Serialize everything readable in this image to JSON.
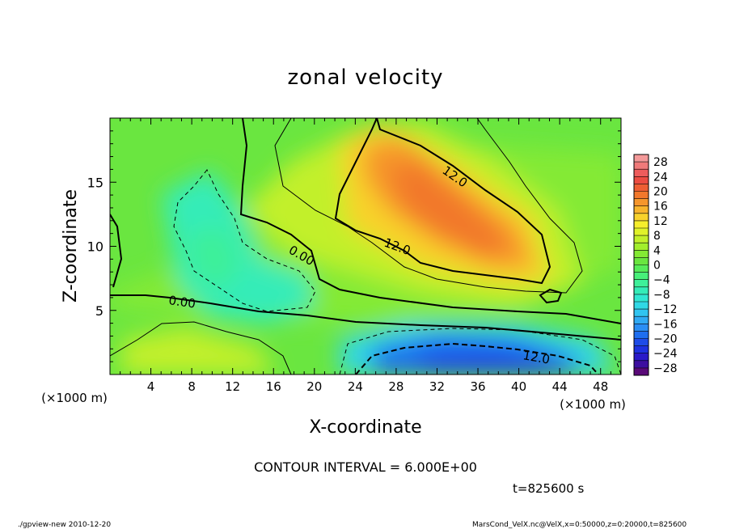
{
  "chart_data": {
    "type": "heatmap",
    "title": "zonal velocity",
    "xlabel": "X-coordinate",
    "ylabel": "Z-coordinate",
    "x_unit": "(×1000 m)",
    "y_unit": "(×1000 m)",
    "xlim": [
      0,
      50
    ],
    "ylim": [
      0,
      20
    ],
    "x_ticks": [
      "4",
      "8",
      "12",
      "16",
      "20",
      "24",
      "28",
      "32",
      "36",
      "40",
      "44",
      "48"
    ],
    "y_ticks": [
      "5",
      "10",
      "15"
    ],
    "colorbar": {
      "ticks": [
        "28",
        "24",
        "20",
        "16",
        "12",
        "8",
        "4",
        "0",
        "−4",
        "−8",
        "−12",
        "−16",
        "−20",
        "−24",
        "−28"
      ],
      "levels": [
        -30,
        -28,
        -26,
        -24,
        -22,
        -20,
        -18,
        -16,
        -14,
        -12,
        -10,
        -8,
        -6,
        -4,
        -2,
        0,
        2,
        4,
        6,
        8,
        10,
        12,
        14,
        16,
        18,
        20,
        22,
        24,
        26,
        28,
        30
      ],
      "colors": [
        "#5a0a78",
        "#3d0fa0",
        "#2a1ac8",
        "#1e32e0",
        "#1e4ce8",
        "#1e6ef0",
        "#2a8ef4",
        "#30aaf4",
        "#30c4f0",
        "#30d8e6",
        "#30e6d2",
        "#34ecb8",
        "#3ef09a",
        "#48f07a",
        "#56ec5a",
        "#6ae640",
        "#84ea34",
        "#a2ee2c",
        "#c2f02a",
        "#e0f22a",
        "#f6ee2c",
        "#f8d22c",
        "#f8b42c",
        "#f6962c",
        "#f2782c",
        "#ee5e34",
        "#ec4c42",
        "#ee5c5c",
        "#f07a7a",
        "#f49a9a"
      ]
    },
    "contour_labels": [
      "12.0",
      "12.0",
      "12.0",
      "0.00",
      "0.00"
    ],
    "contour_interval_text": "CONTOUR INTERVAL = 6.000E+00",
    "time_text": "t=825600 s",
    "footer_left": "./gpview-new 2010-12-20",
    "footer_right": "MarsCond_VelX.nc@VelX,x=0:50000,z=0:20000,t=825600"
  }
}
